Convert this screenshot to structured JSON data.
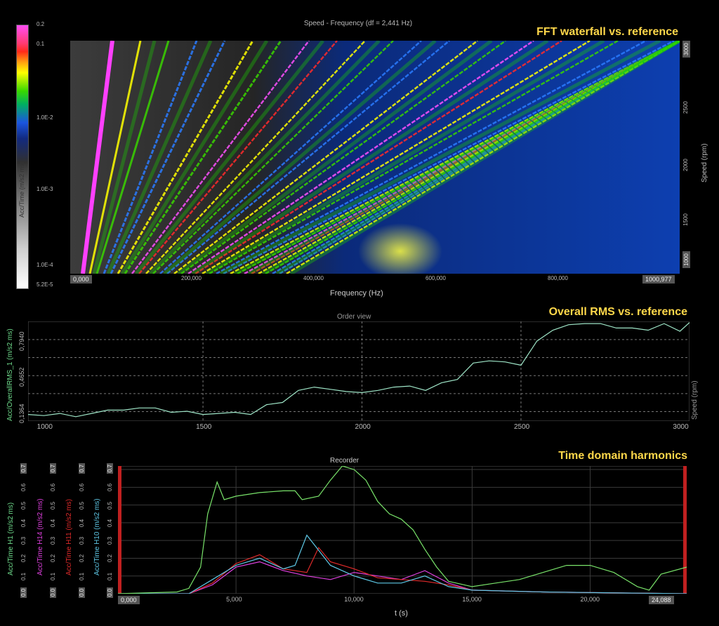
{
  "panels": {
    "fft": {
      "header": "FFT waterfall vs. reference",
      "subtitle": "Speed - Frequency (df = 2,441 Hz)",
      "xlabel": "Frequency (Hz)",
      "ylabel": "Speed (rpm)",
      "cbar_label": "Acc/Time (m/s2 ms)",
      "cbar_ticks": [
        "0.2",
        "0.1",
        "1.0E-2",
        "1.0E-3",
        "1.0E-4",
        "5.2E-5"
      ],
      "x_ticks": [
        "0,000",
        "200,000",
        "400,000",
        "600,000",
        "800,000",
        "1000,977"
      ],
      "y_ticks": [
        "3000",
        "2500",
        "2000",
        "1500",
        "1000"
      ]
    },
    "rms": {
      "header": "Overall RMS vs. reference",
      "subtitle": "Order view",
      "ylabel": "Acc/OverallRMS_1 (m/s2 ms)",
      "right_label": "Speed (rpm)",
      "y_ticks": [
        "0,7940",
        "0,4652",
        "0,1364"
      ],
      "x_ticks": [
        "1000",
        "1500",
        "2000",
        "2500",
        "3000"
      ]
    },
    "time": {
      "header": "Time domain harmonics",
      "subtitle": "Recorder",
      "xlabel": "t (s)",
      "x_ticks": [
        "0,000",
        "5,000",
        "10,000",
        "15,000",
        "20,000",
        "24,088"
      ],
      "y_ticks": [
        "0.7",
        "0.6",
        "0.5",
        "0.4",
        "0.3",
        "0.2",
        "0.1",
        "0.0"
      ],
      "axis_labels": [
        "Acc/Time H1 (m/s2 ms)",
        "Acc/Time H14 (m/s2 ms)",
        "Acc/Time H11 (m/s2 ms)",
        "Acc/Time H10 (m/s2 ms)"
      ]
    }
  },
  "chart_data": [
    {
      "type": "heatmap",
      "title": "Speed - Frequency (df = 2,441 Hz)",
      "xlabel": "Frequency (Hz)",
      "ylabel": "Speed (rpm)",
      "xlim": [
        0,
        1000.977
      ],
      "ylim": [
        900,
        3050
      ],
      "colorbar": {
        "label": "Acc/Time (m/s2 ms)",
        "range": [
          5.2e-05,
          0.2
        ],
        "scale": "log"
      },
      "order_lines": 30,
      "colors": {
        "low": "#ffffff",
        "mid_low": "#1a55e0",
        "mid": "#19d000",
        "mid_high": "#ffff00",
        "high": "#ff2020",
        "max": "#ff40ff"
      }
    },
    {
      "type": "line",
      "title": "Order view",
      "xlabel": "Speed (rpm)",
      "ylabel": "Acc/OverallRMS_1 (m/s2 ms)",
      "xlim": [
        950,
        3030
      ],
      "ylim": [
        0.05,
        0.96
      ],
      "grid": true,
      "series": [
        {
          "name": "Acc/OverallRMS_1",
          "color": "#9fe6c8",
          "x": [
            950,
            1000,
            1050,
            1100,
            1150,
            1200,
            1250,
            1300,
            1350,
            1400,
            1450,
            1500,
            1550,
            1600,
            1650,
            1700,
            1750,
            1800,
            1850,
            1900,
            1950,
            2000,
            2050,
            2100,
            2150,
            2200,
            2250,
            2300,
            2350,
            2400,
            2450,
            2500,
            2550,
            2600,
            2650,
            2700,
            2750,
            2800,
            2850,
            2900,
            2950,
            3000,
            3030
          ],
          "y": [
            0.11,
            0.1,
            0.12,
            0.09,
            0.12,
            0.15,
            0.15,
            0.17,
            0.17,
            0.13,
            0.14,
            0.11,
            0.12,
            0.13,
            0.11,
            0.2,
            0.22,
            0.33,
            0.36,
            0.34,
            0.32,
            0.31,
            0.33,
            0.36,
            0.37,
            0.33,
            0.4,
            0.43,
            0.58,
            0.6,
            0.59,
            0.56,
            0.78,
            0.88,
            0.93,
            0.94,
            0.94,
            0.9,
            0.9,
            0.88,
            0.94,
            0.87,
            0.95
          ]
        }
      ]
    },
    {
      "type": "line",
      "title": "Recorder",
      "xlabel": "t (s)",
      "xlim": [
        0,
        24.088
      ],
      "ylim": [
        0,
        0.72
      ],
      "grid": true,
      "series": [
        {
          "name": "Acc/Time H1",
          "color": "#79e36a",
          "x": [
            0,
            2.5,
            3.0,
            3.5,
            3.8,
            4.2,
            4.5,
            5.0,
            6.0,
            7.0,
            7.5,
            7.8,
            8.5,
            9.0,
            9.5,
            10.0,
            10.5,
            11.0,
            11.5,
            12.0,
            12.5,
            13.0,
            13.5,
            14.0,
            15.0,
            16.0,
            17.0,
            18.0,
            19.0,
            20.0,
            21.0,
            22.0,
            22.5,
            23.0,
            24.088
          ],
          "y": [
            0.0,
            0.01,
            0.03,
            0.15,
            0.45,
            0.63,
            0.53,
            0.55,
            0.57,
            0.58,
            0.58,
            0.53,
            0.55,
            0.64,
            0.72,
            0.7,
            0.64,
            0.52,
            0.45,
            0.42,
            0.36,
            0.25,
            0.15,
            0.07,
            0.04,
            0.06,
            0.08,
            0.12,
            0.16,
            0.16,
            0.12,
            0.04,
            0.02,
            0.11,
            0.15
          ]
        },
        {
          "name": "Acc/Time H14",
          "color": "#e040e0",
          "x": [
            0,
            3.0,
            4.0,
            5.0,
            6.0,
            7.0,
            8.0,
            9.0,
            10.0,
            11.0,
            12.0,
            13.0,
            14.0,
            15.0,
            18.0,
            24.088
          ],
          "y": [
            0.0,
            0.0,
            0.05,
            0.15,
            0.18,
            0.13,
            0.1,
            0.08,
            0.12,
            0.1,
            0.08,
            0.13,
            0.06,
            0.02,
            0.01,
            0.0
          ]
        },
        {
          "name": "Acc/Time H11",
          "color": "#e02a2a",
          "x": [
            0,
            3.0,
            4.0,
            5.0,
            6.0,
            7.0,
            8.0,
            8.5,
            9.0,
            10.0,
            11.0,
            12.0,
            13.0,
            14.0,
            15.0,
            18.0,
            24.088
          ],
          "y": [
            0.0,
            0.0,
            0.06,
            0.17,
            0.22,
            0.14,
            0.12,
            0.26,
            0.18,
            0.14,
            0.09,
            0.08,
            0.07,
            0.05,
            0.02,
            0.01,
            0.0
          ]
        },
        {
          "name": "Acc/Time H10",
          "color": "#5ec8e6",
          "x": [
            0,
            3.0,
            4.0,
            5.0,
            6.0,
            7.0,
            7.5,
            8.0,
            9.0,
            10.0,
            11.0,
            12.0,
            13.0,
            14.0,
            15.0,
            18.0,
            24.088
          ],
          "y": [
            0.0,
            0.0,
            0.08,
            0.16,
            0.2,
            0.14,
            0.16,
            0.33,
            0.16,
            0.1,
            0.06,
            0.06,
            0.1,
            0.04,
            0.02,
            0.01,
            0.0
          ]
        }
      ]
    }
  ]
}
